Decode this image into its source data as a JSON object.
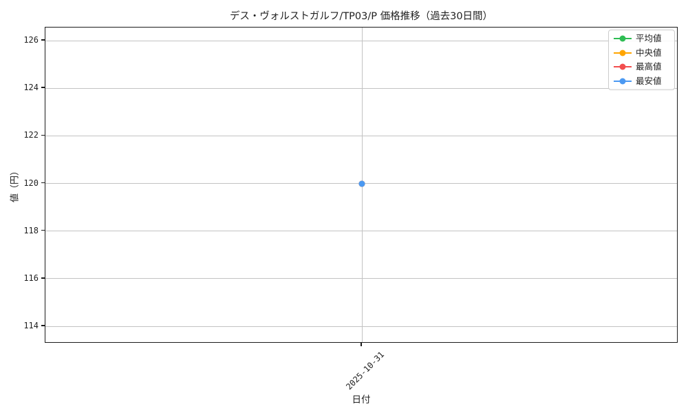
{
  "chart_data": {
    "type": "line",
    "title": "デス・ヴォルストガルフ/TP03/P 価格推移（過去30日間）",
    "xlabel": "日付",
    "ylabel": "値（円）",
    "x": [
      "2025-10-31"
    ],
    "series": [
      {
        "name": "平均値",
        "color": "#2ebd53",
        "values": [
          120
        ]
      },
      {
        "name": "中央値",
        "color": "#ffa500",
        "values": [
          120
        ]
      },
      {
        "name": "最高値",
        "color": "#f24e4e",
        "values": [
          120
        ]
      },
      {
        "name": "最安値",
        "color": "#4b99f2",
        "values": [
          120
        ]
      }
    ],
    "yticks": [
      114,
      116,
      118,
      120,
      122,
      124,
      126
    ],
    "ylim": [
      113.28,
      126.55
    ],
    "grid": true,
    "legend_position": "upper right",
    "marker": "circle",
    "visible_top_series": "最安値"
  }
}
